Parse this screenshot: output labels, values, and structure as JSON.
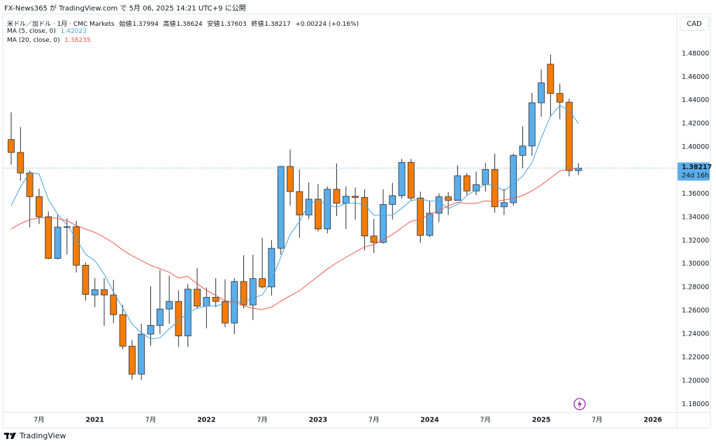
{
  "header": {
    "publisher": "FX-News365 が TradingView.com で 5月 06, 2025 14:21 UTC+9 に公開"
  },
  "legend": {
    "symbol": "米ドル／加ドル · 1月 · CMC Markets",
    "open": "始値",
    "high": "高値",
    "low": "安値",
    "close": "終値",
    "change": "+0.00224 (+0.16%)"
  },
  "footer": {
    "brand": "TradingView"
  },
  "chart_data": {
    "type": "candlestick",
    "currency": "CAD",
    "countdown": "24d 16h",
    "up_color": "#5aaeea",
    "down_color": "#f57c00",
    "grid": false,
    "categories": [
      null,
      null,
      null,
      "7月",
      null,
      null,
      null,
      null,
      null,
      "2021",
      null,
      null,
      null,
      null,
      null,
      "7月",
      null,
      null,
      null,
      null,
      null,
      "2022",
      null,
      null,
      null,
      null,
      null,
      "7月",
      null,
      null,
      null,
      null,
      null,
      "2023",
      null,
      null,
      null,
      null,
      null,
      "7月",
      null,
      null,
      null,
      null,
      null,
      "2024",
      null,
      null,
      null,
      null,
      null,
      "7月",
      null,
      null,
      null,
      null,
      null,
      "2025",
      null,
      null,
      null,
      null,
      null,
      "7月",
      null,
      null,
      null,
      null,
      null,
      "2026",
      null,
      null
    ],
    "open": [
      1.4065,
      1.3955,
      1.378,
      1.3577,
      1.3405,
      1.3048,
      1.3316,
      1.332,
      1.299,
      1.2735,
      1.278,
      1.2735,
      1.2567,
      1.2297,
      1.2058,
      1.24,
      1.2475,
      1.2615,
      1.268,
      1.2385,
      1.2785,
      1.264,
      1.2715,
      1.268,
      1.2495,
      1.285,
      1.265,
      1.2875,
      1.2805,
      1.3135,
      1.3835,
      1.362,
      1.342,
      1.3555,
      1.33,
      1.364,
      1.352,
      1.358,
      1.357,
      1.324,
      1.3185,
      1.351,
      1.3585,
      1.387,
      1.3565,
      1.3245,
      1.3435,
      1.3575,
      1.3545,
      1.3755,
      1.3625,
      1.368,
      1.381,
      1.349,
      1.3525,
      1.393,
      1.401,
      1.438,
      1.471,
      1.446,
      1.4385,
      1.37994,
      null,
      null,
      null,
      null,
      null,
      null,
      null,
      null,
      null,
      null
    ],
    "high": [
      1.4299,
      1.4173,
      1.38,
      1.3646,
      1.345,
      1.342,
      1.339,
      1.337,
      1.3014,
      1.288,
      1.288,
      1.2865,
      1.265,
      1.235,
      1.249,
      1.281,
      1.295,
      1.29,
      1.2775,
      1.283,
      1.2965,
      1.28,
      1.288,
      1.287,
      1.288,
      1.3075,
      1.308,
      1.3225,
      1.3205,
      1.384,
      1.398,
      1.381,
      1.37,
      1.3685,
      1.3665,
      1.386,
      1.3665,
      1.3655,
      1.364,
      1.3385,
      1.364,
      1.3695,
      1.39,
      1.39,
      1.362,
      1.354,
      1.3605,
      1.3615,
      1.3845,
      1.378,
      1.379,
      1.3865,
      1.3945,
      1.3645,
      1.3945,
      1.418,
      1.4465,
      1.4665,
      1.4793,
      1.4545,
      1.4415,
      1.38624,
      null,
      null,
      null,
      null,
      null,
      null,
      null,
      null,
      null,
      null
    ],
    "low": [
      1.3851,
      1.3715,
      1.3315,
      1.3342,
      1.3041,
      1.3038,
      1.3081,
      1.2928,
      1.2688,
      1.263,
      1.247,
      1.2495,
      1.227,
      1.201,
      1.201,
      1.23,
      1.24,
      1.249,
      1.229,
      1.229,
      1.262,
      1.245,
      1.263,
      1.246,
      1.24,
      1.262,
      1.252,
      1.279,
      1.273,
      1.308,
      1.35,
      1.3225,
      1.3385,
      1.328,
      1.3262,
      1.341,
      1.33,
      1.338,
      1.3115,
      1.3095,
      1.3175,
      1.338,
      1.356,
      1.354,
      1.318,
      1.323,
      1.336,
      1.342,
      1.3545,
      1.359,
      1.359,
      1.362,
      1.344,
      1.342,
      1.35,
      1.382,
      1.3925,
      1.426,
      1.426,
      1.424,
      1.375,
      1.37603,
      null,
      null,
      null,
      null,
      null,
      null,
      null,
      null,
      null,
      null
    ],
    "close": [
      1.3955,
      1.378,
      1.3577,
      1.3405,
      1.3048,
      1.3316,
      1.332,
      1.299,
      1.274,
      1.278,
      1.2735,
      1.2567,
      1.2297,
      1.2058,
      1.24,
      1.2475,
      1.2615,
      1.268,
      1.2385,
      1.2785,
      1.264,
      1.2715,
      1.268,
      1.2495,
      1.285,
      1.265,
      1.2875,
      1.2805,
      1.3135,
      1.3835,
      1.362,
      1.342,
      1.3555,
      1.33,
      1.364,
      1.352,
      1.358,
      1.357,
      1.324,
      1.3185,
      1.351,
      1.3585,
      1.387,
      1.3565,
      1.3245,
      1.3435,
      1.3575,
      1.3545,
      1.3755,
      1.3625,
      1.368,
      1.381,
      1.349,
      1.3525,
      1.393,
      1.401,
      1.438,
      1.455,
      1.446,
      1.4385,
      1.38,
      1.38217,
      null,
      null,
      null,
      null,
      null,
      null,
      null,
      null,
      null,
      null
    ],
    "series": [
      {
        "name": "MA (5, close, 0)",
        "color": "#4aa3df",
        "values": [
          1.35,
          1.366,
          1.3785,
          1.377,
          1.3553,
          1.3425,
          1.3333,
          1.3216,
          1.3083,
          1.3029,
          1.2913,
          1.2762,
          1.2624,
          1.2487,
          1.2411,
          1.2359,
          1.2369,
          1.2446,
          1.2511,
          1.2588,
          1.2621,
          1.2641,
          1.2641,
          1.2663,
          1.2676,
          1.2678,
          1.271,
          1.2735,
          1.2863,
          1.306,
          1.3254,
          1.3363,
          1.3513,
          1.3546,
          1.3507,
          1.3487,
          1.3519,
          1.3522,
          1.351,
          1.3419,
          1.3417,
          1.3418,
          1.3478,
          1.3543,
          1.3555,
          1.354,
          1.3538,
          1.3473,
          1.3511,
          1.3587,
          1.3636,
          1.3683,
          1.3672,
          1.3626,
          1.3687,
          1.3753,
          1.3867,
          1.4079,
          1.4266,
          1.4357,
          1.4315,
          1.42023,
          null,
          null,
          null,
          null,
          null,
          null,
          null,
          null,
          null,
          null
        ]
      },
      {
        "name": "MA (20, close, 0)",
        "color": "#f0584a",
        "values": [
          1.33,
          1.3345,
          1.338,
          1.3395,
          1.34,
          1.339,
          1.337,
          1.333,
          1.33,
          1.327,
          1.323,
          1.318,
          1.312,
          1.307,
          1.303,
          1.299,
          1.296,
          1.293,
          1.288,
          1.2895,
          1.283,
          1.2776,
          1.2732,
          1.2686,
          1.2676,
          1.2643,
          1.2621,
          1.2611,
          1.2631,
          1.2684,
          1.2728,
          1.2771,
          1.2834,
          1.2896,
          1.2958,
          1.301,
          1.3058,
          1.3103,
          1.3146,
          1.3166,
          1.3209,
          1.3253,
          1.3312,
          1.3366,
          1.3385,
          1.3425,
          1.346,
          1.3497,
          1.3528,
          1.3517,
          1.352,
          1.354,
          1.3536,
          1.3548,
          1.3562,
          1.3587,
          1.3627,
          1.3676,
          1.3737,
          1.3797,
          1.3811,
          1.38235,
          null,
          null,
          null,
          null,
          null,
          null,
          null,
          null,
          null,
          null
        ]
      }
    ],
    "ylim": [
      1.173,
      1.514
    ],
    "yticks": [
      {
        "value": 1.18,
        "label": "1.18000"
      },
      {
        "value": 1.2,
        "label": "1.20000"
      },
      {
        "value": 1.22,
        "label": "1.22000"
      },
      {
        "value": 1.24,
        "label": "1.24000"
      },
      {
        "value": 1.26,
        "label": "1.26000"
      },
      {
        "value": 1.28,
        "label": "1.28000"
      },
      {
        "value": 1.3,
        "label": "1.30000"
      },
      {
        "value": 1.32,
        "label": "1.32000"
      },
      {
        "value": 1.34,
        "label": "1.34000"
      },
      {
        "value": 1.36,
        "label": "1.36000"
      },
      {
        "value": 1.38,
        "label": "1.38000"
      },
      {
        "value": 1.4,
        "label": "1.40000"
      },
      {
        "value": 1.42,
        "label": "1.42000"
      },
      {
        "value": 1.44,
        "label": "1.44000"
      },
      {
        "value": 1.46,
        "label": "1.46000"
      },
      {
        "value": 1.48,
        "label": "1.48000"
      }
    ]
  }
}
